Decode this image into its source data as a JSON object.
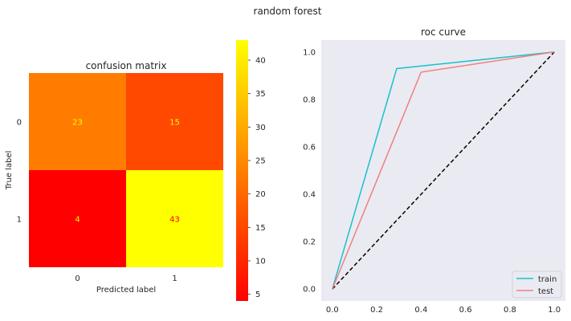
{
  "figure": {
    "suptitle": "random forest"
  },
  "chart_data": [
    {
      "type": "heatmap",
      "title": "confusion matrix",
      "xlabel": "Predicted label",
      "ylabel": "True label",
      "x_categories": [
        "0",
        "1"
      ],
      "y_categories": [
        "0",
        "1"
      ],
      "values": [
        [
          23,
          15
        ],
        [
          4,
          43
        ]
      ],
      "cmap": "autumn",
      "color_low": "#ff0000",
      "color_high": "#ffff00",
      "colorbar": {
        "range": [
          4,
          43
        ],
        "ticks": [
          "5",
          "10",
          "15",
          "20",
          "25",
          "30",
          "35",
          "40"
        ]
      },
      "cell_text_colors": [
        [
          "#ffff00",
          "#ffff00"
        ],
        [
          "#ffff00",
          "#ff0000"
        ]
      ]
    },
    {
      "type": "line",
      "title": "roc curve",
      "xlim": [
        -0.05,
        1.05
      ],
      "ylim": [
        -0.05,
        1.05
      ],
      "xticks": [
        "0.0",
        "0.2",
        "0.4",
        "0.6",
        "0.8",
        "1.0"
      ],
      "yticks": [
        "0.0",
        "0.2",
        "0.4",
        "0.6",
        "0.8",
        "1.0"
      ],
      "grid": false,
      "background": "#eaeaf2",
      "legend_position": "lower-right",
      "series": [
        {
          "name": "train",
          "color": "#17c1c9",
          "x": [
            0,
            0.29,
            1
          ],
          "y": [
            0,
            0.93,
            1
          ]
        },
        {
          "name": "test",
          "color": "#f08080",
          "x": [
            0,
            0.4,
            1
          ],
          "y": [
            0,
            0.915,
            1
          ]
        }
      ],
      "reference_line": {
        "x": [
          0,
          1
        ],
        "y": [
          0,
          1
        ],
        "color": "#000000",
        "style": "dashed"
      }
    }
  ]
}
